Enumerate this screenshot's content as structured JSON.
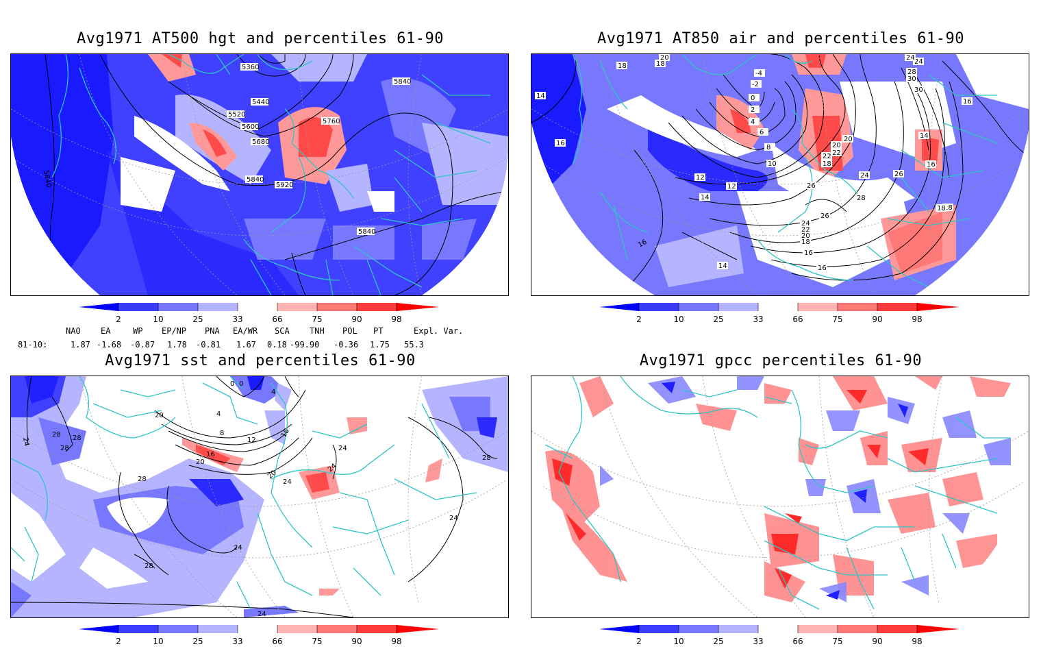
{
  "panels": [
    {
      "id": "p1",
      "title": "Avg1971 AT500 hgt and percentiles 61-90",
      "contour_labels": [
        "5360",
        "5440",
        "5520",
        "5600",
        "5680",
        "5760",
        "5840",
        "5920",
        "5840",
        "5840",
        "5840"
      ]
    },
    {
      "id": "p2",
      "title": "Avg1971 AT850 air and percentiles 61-90",
      "contour_labels": [
        "18",
        "18",
        "20",
        "16",
        "16",
        "14",
        "-4",
        "-2",
        "0",
        "2",
        "4",
        "6",
        "8",
        "10",
        "12",
        "12",
        "14",
        "16",
        "18",
        "20",
        "22",
        "24",
        "26",
        "26",
        "28",
        "30",
        "30",
        "14",
        "20",
        "22",
        "18",
        "24",
        "28",
        "26",
        "24",
        "22",
        "20",
        "18",
        "16",
        "14",
        "16",
        "18",
        "16",
        "24"
      ]
    },
    {
      "id": "p3",
      "title": "Avg1971 sst and percentiles 61-90",
      "contour_labels": [
        "24",
        "28",
        "28",
        "28",
        "20",
        "4",
        "8",
        "12",
        "16",
        "16",
        "20",
        "20",
        "24",
        "24",
        "24",
        "24",
        "28",
        "24",
        "28",
        "28",
        "24",
        "0",
        "0",
        "4"
      ]
    },
    {
      "id": "p4",
      "title": "Avg1971 gpcc percentiles 61-90",
      "contour_labels": []
    }
  ],
  "colorbar": {
    "labels": [
      "2",
      "10",
      "25",
      "33",
      "66",
      "75",
      "90",
      "98"
    ],
    "colors": {
      "c2": "#0000ff",
      "c10": "#3c3cff",
      "c25": "#7878ff",
      "c33": "#b4b4ff",
      "c66": "#ffb4b4",
      "c75": "#ff7878",
      "c90": "#ff3c3c",
      "c98": "#ff0000"
    }
  },
  "indices": {
    "headers": [
      "NAO",
      "EA",
      "WP",
      "EP/NP",
      "PNA",
      "EA/WR",
      "SCA",
      "TNH",
      "POL",
      "PT",
      "Expl. Var."
    ],
    "period": "81-10:",
    "values": [
      "1.87",
      "-1.68",
      "-0.87",
      "1.78",
      "-0.81",
      "1.67",
      "0.18",
      "-99.90",
      "-0.36",
      "1.75",
      "55.3"
    ]
  },
  "colors": {
    "coast": "#2ec4c4",
    "contour": "#000000",
    "grid": "#9a9a9a"
  }
}
